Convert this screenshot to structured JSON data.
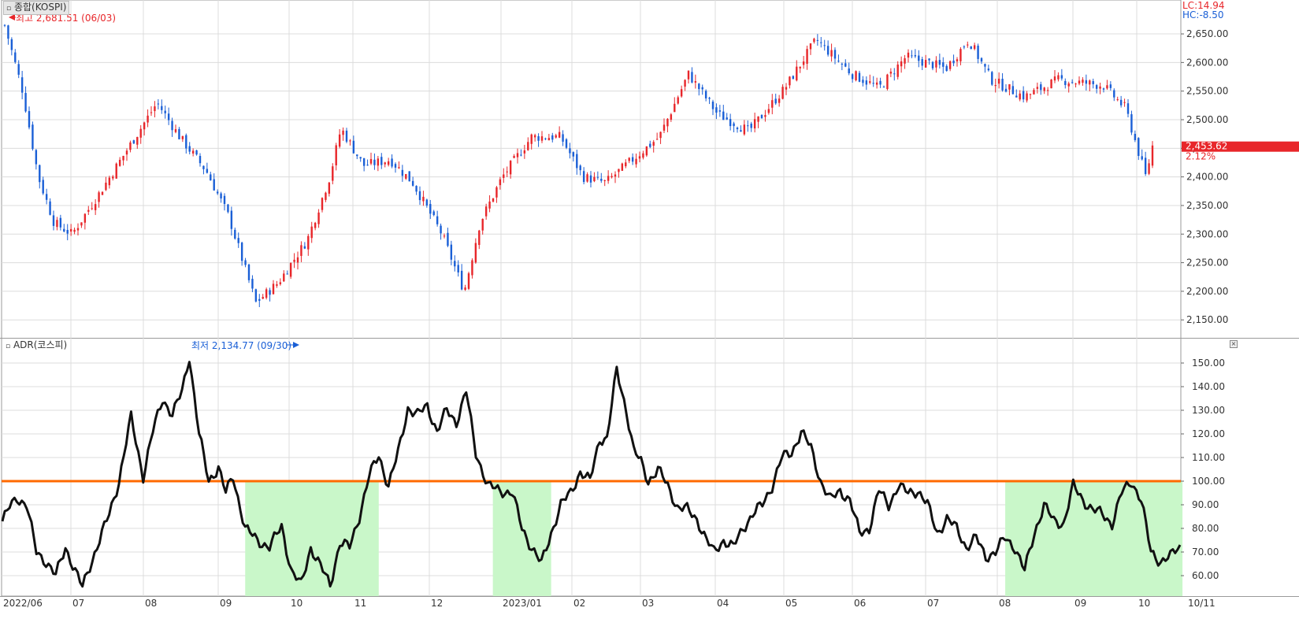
{
  "panels": {
    "top_title": "종합(KOSPI)",
    "bottom_title": "ADR(코스피)",
    "lc_label": "LC:14.94",
    "hc_label": "HC:-8.50",
    "close_icon": "close-icon"
  },
  "annotations": {
    "high_label": "최고 2,681.51 (06/03)",
    "low_label": "최저 2,134.77 (09/30)",
    "last_price": "2,453.62",
    "last_change": "2.12%"
  },
  "colors": {
    "up": "#e8262a",
    "down": "#1a5fd6",
    "adr_line": "#111111",
    "adr_low": "#3a1a4a",
    "ref_line": "#ff6a00",
    "zone": "#c9f7c9",
    "grid": "#dcdcdc"
  },
  "x_axis_labels": [
    "2022/06",
    "07",
    "08",
    "09",
    "10",
    "11",
    "12",
    "2023/01",
    "02",
    "03",
    "04",
    "05",
    "06",
    "07",
    "08",
    "09",
    "10",
    "10/11"
  ],
  "chart_data": [
    {
      "type": "candlestick",
      "title": "종합(KOSPI)",
      "ylim": [
        2120,
        2690
      ],
      "y_ticks": [
        "2,150.00",
        "2,200.00",
        "2,250.00",
        "2,300.00",
        "2,350.00",
        "2,400.00",
        "2,450.00",
        "2,500.00",
        "2,550.00",
        "2,600.00",
        "2,650.00"
      ],
      "y_tick_values": [
        2150,
        2200,
        2250,
        2300,
        2350,
        2400,
        2450,
        2500,
        2550,
        2600,
        2650
      ],
      "n_bars": 330,
      "x_range": [
        "2022/06/02",
        "2023/10/11"
      ],
      "close_anchors": [
        [
          0,
          2665
        ],
        [
          8,
          2550
        ],
        [
          15,
          2400
        ],
        [
          22,
          2320
        ],
        [
          30,
          2300
        ],
        [
          42,
          2370
        ],
        [
          55,
          2450
        ],
        [
          68,
          2530
        ],
        [
          78,
          2470
        ],
        [
          90,
          2410
        ],
        [
          100,
          2330
        ],
        [
          112,
          2180
        ],
        [
          122,
          2215
        ],
        [
          135,
          2290
        ],
        [
          145,
          2400
        ],
        [
          150,
          2485
        ],
        [
          160,
          2420
        ],
        [
          172,
          2430
        ],
        [
          182,
          2390
        ],
        [
          195,
          2300
        ],
        [
          205,
          2200
        ],
        [
          212,
          2320
        ],
        [
          222,
          2400
        ],
        [
          235,
          2470
        ],
        [
          248,
          2470
        ],
        [
          258,
          2400
        ],
        [
          268,
          2390
        ],
        [
          280,
          2430
        ],
        [
          292,
          2470
        ],
        [
          305,
          2580
        ],
        [
          318,
          2510
        ],
        [
          332,
          2480
        ],
        [
          348,
          2555
        ],
        [
          362,
          2640
        ],
        [
          378,
          2580
        ],
        [
          390,
          2555
        ],
        [
          402,
          2610
        ],
        [
          420,
          2590
        ],
        [
          430,
          2640
        ],
        [
          440,
          2570
        ],
        [
          455,
          2540
        ],
        [
          470,
          2570
        ],
        [
          490,
          2560
        ],
        [
          500,
          2520
        ],
        [
          509,
          2400
        ],
        [
          512,
          2454
        ]
      ],
      "last_value": 2453.62,
      "high": {
        "value": 2681.51,
        "date": "06/03"
      },
      "low": {
        "value": 2134.77,
        "date": "09/30"
      }
    },
    {
      "type": "line",
      "title": "ADR(코스피)",
      "ylim": [
        52,
        157
      ],
      "y_ticks": [
        "60.00",
        "70.00",
        "80.00",
        "90.00",
        "100.00",
        "110.00",
        "120.00",
        "130.00",
        "140.00",
        "150.00"
      ],
      "y_tick_values": [
        60,
        70,
        80,
        90,
        100,
        110,
        120,
        130,
        140,
        150
      ],
      "reference_line": 100,
      "values": [
        [
          0,
          83
        ],
        [
          3,
          89
        ],
        [
          6,
          93
        ],
        [
          10,
          90
        ],
        [
          14,
          70
        ],
        [
          18,
          66
        ],
        [
          22,
          60
        ],
        [
          26,
          72
        ],
        [
          30,
          62
        ],
        [
          33,
          55
        ],
        [
          36,
          64
        ],
        [
          40,
          75
        ],
        [
          44,
          86
        ],
        [
          48,
          100
        ],
        [
          53,
          127
        ],
        [
          58,
          102
        ],
        [
          62,
          121
        ],
        [
          66,
          135
        ],
        [
          70,
          128
        ],
        [
          74,
          138
        ],
        [
          77,
          153
        ],
        [
          81,
          120
        ],
        [
          85,
          100
        ],
        [
          89,
          106
        ],
        [
          92,
          95
        ],
        [
          95,
          102
        ],
        [
          100,
          80
        ],
        [
          105,
          75
        ],
        [
          110,
          72
        ],
        [
          115,
          81
        ],
        [
          119,
          62
        ],
        [
          123,
          56
        ],
        [
          127,
          72
        ],
        [
          131,
          64
        ],
        [
          135,
          56
        ],
        [
          139,
          74
        ],
        [
          143,
          72
        ],
        [
          147,
          85
        ],
        [
          151,
          102
        ],
        [
          155,
          111
        ],
        [
          159,
          98
        ],
        [
          163,
          112
        ],
        [
          167,
          131
        ],
        [
          171,
          128
        ],
        [
          175,
          132
        ],
        [
          179,
          121
        ],
        [
          183,
          130
        ],
        [
          187,
          125
        ],
        [
          191,
          138
        ],
        [
          195,
          112
        ],
        [
          200,
          98
        ],
        [
          205,
          96
        ],
        [
          210,
          95
        ],
        [
          214,
          80
        ],
        [
          218,
          72
        ],
        [
          222,
          65
        ],
        [
          226,
          78
        ],
        [
          230,
          90
        ],
        [
          234,
          95
        ],
        [
          238,
          104
        ],
        [
          242,
          100
        ],
        [
          246,
          118
        ],
        [
          249,
          118
        ],
        [
          253,
          147
        ],
        [
          257,
          130
        ],
        [
          260,
          113
        ],
        [
          263,
          108
        ],
        [
          266,
          100
        ],
        [
          270,
          105
        ],
        [
          274,
          98
        ],
        [
          278,
          89
        ],
        [
          282,
          88
        ],
        [
          286,
          84
        ],
        [
          290,
          75
        ],
        [
          293,
          70
        ],
        [
          297,
          75
        ],
        [
          301,
          72
        ],
        [
          305,
          80
        ],
        [
          309,
          86
        ],
        [
          313,
          90
        ],
        [
          317,
          98
        ],
        [
          321,
          110
        ],
        [
          325,
          112
        ],
        [
          329,
          121
        ],
        [
          333,
          114
        ],
        [
          337,
          100
        ],
        [
          341,
          92
        ],
        [
          345,
          96
        ],
        [
          349,
          92
        ],
        [
          353,
          78
        ],
        [
          357,
          80
        ],
        [
          361,
          96
        ],
        [
          365,
          90
        ],
        [
          369,
          98
        ],
        [
          373,
          95
        ],
        [
          377,
          96
        ],
        [
          381,
          90
        ],
        [
          385,
          78
        ],
        [
          389,
          84
        ],
        [
          393,
          80
        ],
        [
          397,
          72
        ],
        [
          401,
          76
        ],
        [
          405,
          68
        ],
        [
          409,
          70
        ],
        [
          413,
          76
        ],
        [
          417,
          72
        ],
        [
          421,
          62
        ],
        [
          425,
          78
        ],
        [
          429,
          90
        ],
        [
          433,
          83
        ],
        [
          437,
          82
        ],
        [
          441,
          98
        ],
        [
          445,
          92
        ],
        [
          449,
          88
        ],
        [
          453,
          86
        ],
        [
          457,
          82
        ],
        [
          461,
          95
        ],
        [
          465,
          100
        ],
        [
          469,
          92
        ],
        [
          473,
          70
        ],
        [
          477,
          66
        ],
        [
          481,
          68
        ],
        [
          485,
          73
        ]
      ],
      "values_x_scale_n": 486,
      "shaded_zones": [
        [
          100,
          155
        ],
        [
          202,
          226
        ],
        [
          413,
          486
        ]
      ]
    }
  ]
}
